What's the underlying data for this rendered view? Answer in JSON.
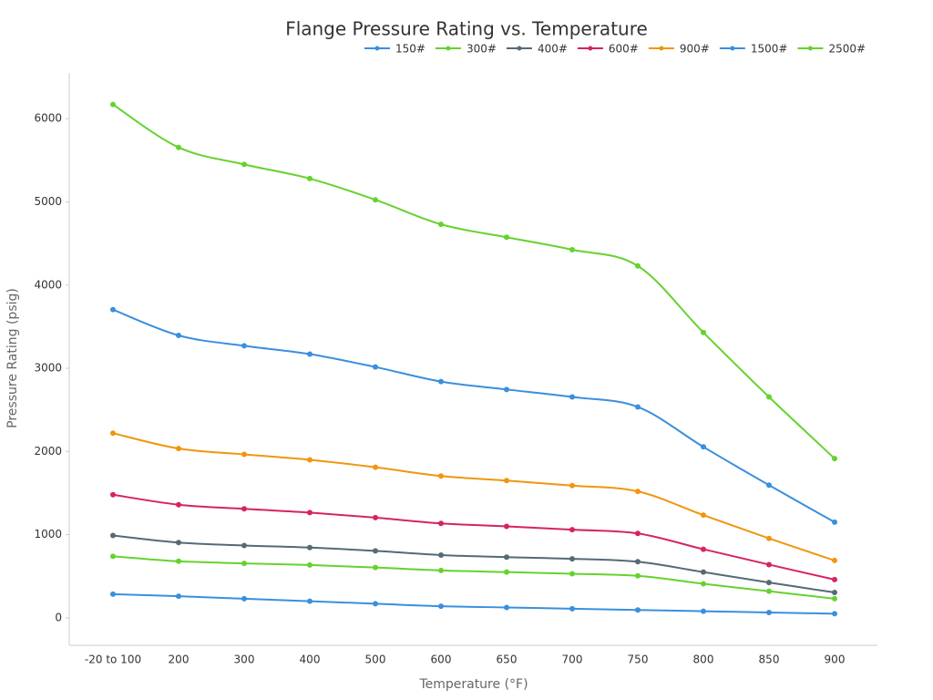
{
  "chart_data": {
    "type": "line",
    "title": "Flange Pressure Rating vs. Temperature",
    "x_label": "Temperature (°F)",
    "y_label": "Pressure Rating (psig)",
    "categories": [
      "-20 to 100",
      "200",
      "300",
      "400",
      "500",
      "600",
      "650",
      "700",
      "750",
      "800",
      "850",
      "900"
    ],
    "series": [
      {
        "name": "150#",
        "color": "#3a8fde",
        "values": [
          285,
          260,
          230,
          200,
          170,
          140,
          125,
          110,
          95,
          80,
          65,
          50
        ]
      },
      {
        "name": "300#",
        "color": "#66d22e",
        "values": [
          740,
          680,
          655,
          635,
          605,
          570,
          550,
          530,
          505,
          410,
          320,
          230
        ]
      },
      {
        "name": "400#",
        "color": "#546a76",
        "values": [
          990,
          905,
          870,
          845,
          805,
          755,
          730,
          710,
          675,
          550,
          425,
          305
        ]
      },
      {
        "name": "600#",
        "color": "#d6245e",
        "values": [
          1480,
          1360,
          1310,
          1265,
          1205,
          1135,
          1100,
          1060,
          1015,
          825,
          640,
          460
        ]
      },
      {
        "name": "900#",
        "color": "#f0960e",
        "values": [
          2220,
          2035,
          1965,
          1900,
          1810,
          1705,
          1650,
          1590,
          1520,
          1235,
          955,
          690
        ]
      },
      {
        "name": "1500#",
        "color": "#3a8fde",
        "values": [
          3705,
          3395,
          3270,
          3170,
          3015,
          2840,
          2745,
          2655,
          2535,
          2055,
          1595,
          1150
        ]
      },
      {
        "name": "2500#",
        "color": "#66d22e",
        "values": [
          6170,
          5655,
          5450,
          5280,
          5025,
          4730,
          4575,
          4425,
          4230,
          3430,
          2655,
          1915
        ]
      }
    ],
    "ylim": [
      -330,
      6550
    ],
    "yticks": [
      0,
      1000,
      2000,
      3000,
      4000,
      5000,
      6000
    ],
    "grid": false,
    "legend": "top"
  }
}
